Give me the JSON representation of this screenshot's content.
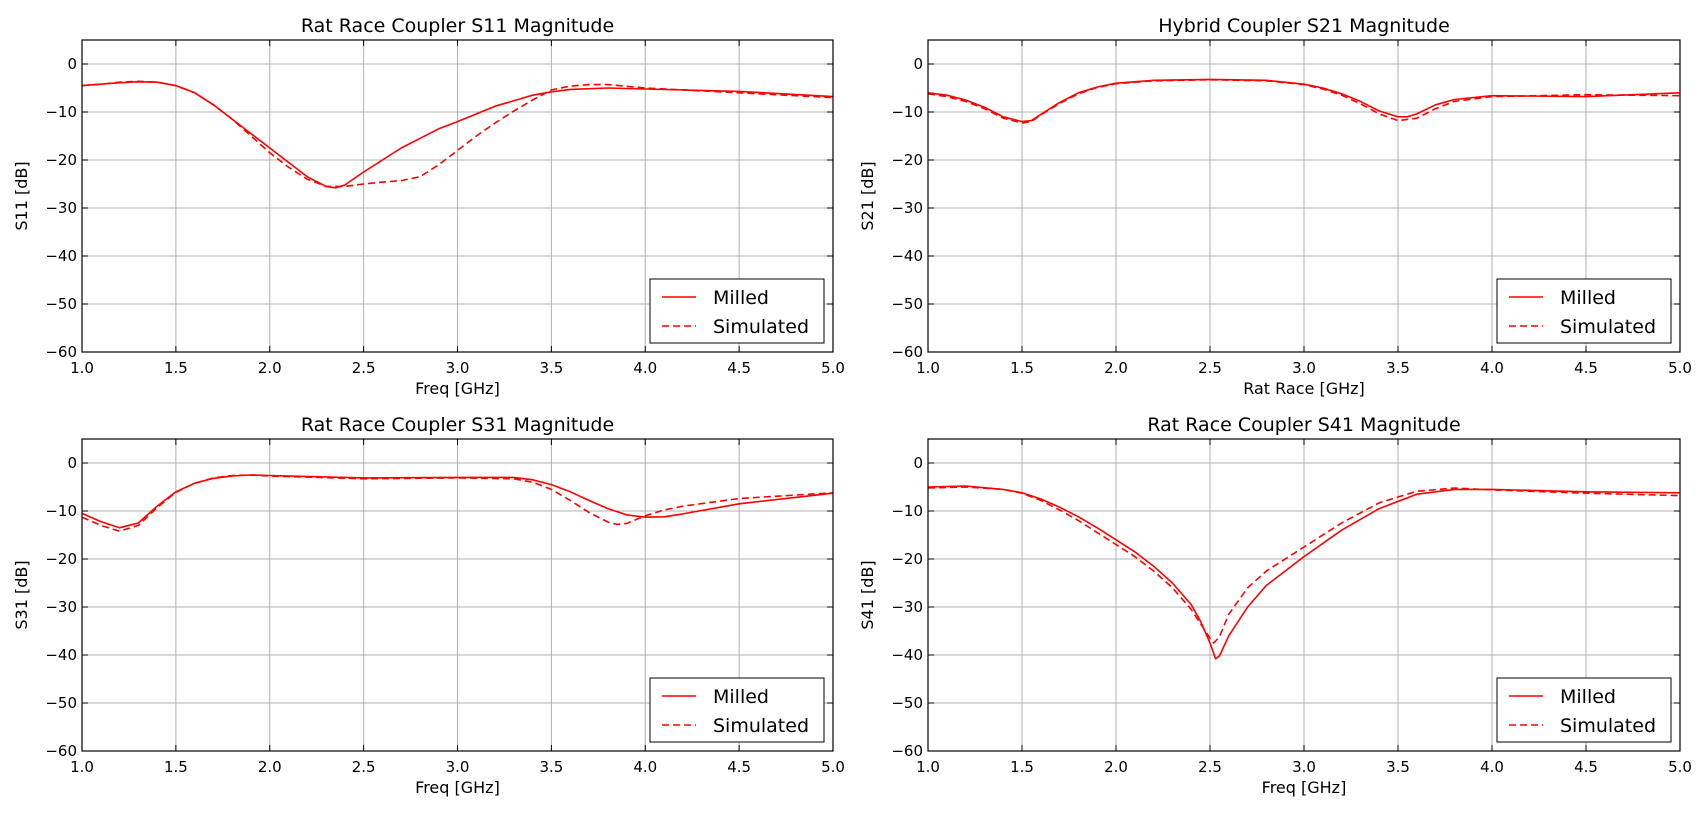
{
  "colors": {
    "series": "#ff0000",
    "grid": "#b0b0b0",
    "axes": "#000000"
  },
  "chart_data": [
    {
      "type": "line",
      "title": "Rat Race Coupler S11 Magnitude",
      "xlabel": "Freq [GHz]",
      "ylabel": "S11 [dB]",
      "xlim": [
        1.0,
        5.0
      ],
      "ylim": [
        -60,
        5
      ],
      "xticks": [
        "1.0",
        "1.5",
        "2.0",
        "2.5",
        "3.0",
        "3.5",
        "4.0",
        "4.5",
        "5.0"
      ],
      "yticks": [
        "0",
        "−10",
        "−20",
        "−30",
        "−40",
        "−50",
        "−60"
      ],
      "grid": true,
      "legend": "lower-right",
      "series": [
        {
          "name": "Milled",
          "style": "solid",
          "x": [
            1.0,
            1.1,
            1.2,
            1.3,
            1.4,
            1.5,
            1.6,
            1.7,
            1.8,
            1.9,
            2.0,
            2.1,
            2.2,
            2.3,
            2.35,
            2.4,
            2.5,
            2.6,
            2.7,
            2.8,
            2.9,
            3.0,
            3.2,
            3.4,
            3.5,
            3.6,
            3.8,
            4.0,
            4.5,
            5.0
          ],
          "y": [
            -4.5,
            -4.2,
            -3.9,
            -3.7,
            -3.8,
            -4.5,
            -6,
            -8.5,
            -11.5,
            -14.5,
            -17.5,
            -20.5,
            -23.5,
            -25.5,
            -25.8,
            -25.2,
            -22.5,
            -20,
            -17.5,
            -15.5,
            -13.5,
            -12,
            -8.8,
            -6.5,
            -5.8,
            -5.3,
            -5,
            -5.2,
            -5.7,
            -6.8
          ]
        },
        {
          "name": "Simulated",
          "style": "dashed",
          "x": [
            1.0,
            1.1,
            1.2,
            1.3,
            1.4,
            1.5,
            1.6,
            1.7,
            1.8,
            1.9,
            2.0,
            2.1,
            2.2,
            2.3,
            2.4,
            2.5,
            2.6,
            2.7,
            2.8,
            2.9,
            3.0,
            3.1,
            3.2,
            3.3,
            3.4,
            3.5,
            3.6,
            3.7,
            3.8,
            4.0,
            4.5,
            5.0
          ],
          "y": [
            -4.5,
            -4.2,
            -3.8,
            -3.6,
            -3.8,
            -4.5,
            -6,
            -8.5,
            -11.5,
            -15,
            -18.5,
            -21.5,
            -24,
            -25.5,
            -25.5,
            -25,
            -24.6,
            -24.3,
            -23.5,
            -21,
            -18,
            -15,
            -12.3,
            -9.8,
            -7.5,
            -5.4,
            -4.6,
            -4.3,
            -4.3,
            -5,
            -6,
            -7
          ]
        }
      ]
    },
    {
      "type": "line",
      "title": "Hybrid Coupler S21 Magnitude",
      "xlabel": "Rat Race [GHz]",
      "ylabel": "S21 [dB]",
      "xlim": [
        1.0,
        5.0
      ],
      "ylim": [
        -60,
        5
      ],
      "xticks": [
        "1.0",
        "1.5",
        "2.0",
        "2.5",
        "3.0",
        "3.5",
        "4.0",
        "4.5",
        "5.0"
      ],
      "yticks": [
        "0",
        "−10",
        "−20",
        "−30",
        "−40",
        "−50",
        "−60"
      ],
      "grid": true,
      "legend": "lower-right",
      "series": [
        {
          "name": "Milled",
          "style": "solid",
          "x": [
            1.0,
            1.1,
            1.2,
            1.3,
            1.4,
            1.5,
            1.55,
            1.6,
            1.7,
            1.8,
            1.9,
            2.0,
            2.2,
            2.5,
            2.8,
            3.0,
            3.1,
            3.2,
            3.3,
            3.4,
            3.5,
            3.55,
            3.6,
            3.7,
            3.8,
            4.0,
            4.5,
            5.0
          ],
          "y": [
            -6,
            -6.5,
            -7.5,
            -9,
            -11,
            -12,
            -11.8,
            -10.5,
            -8,
            -6,
            -4.8,
            -4,
            -3.4,
            -3.2,
            -3.4,
            -4.2,
            -5,
            -6.2,
            -7.8,
            -9.8,
            -11,
            -11,
            -10.4,
            -8.5,
            -7.4,
            -6.6,
            -6.8,
            -6
          ]
        },
        {
          "name": "Simulated",
          "style": "dashed",
          "x": [
            1.0,
            1.1,
            1.2,
            1.3,
            1.4,
            1.5,
            1.55,
            1.6,
            1.7,
            1.8,
            1.9,
            2.0,
            2.2,
            2.5,
            2.8,
            3.0,
            3.1,
            3.2,
            3.3,
            3.4,
            3.5,
            3.6,
            3.7,
            3.8,
            4.0,
            4.5,
            5.0
          ],
          "y": [
            -6.2,
            -6.8,
            -7.8,
            -9.3,
            -11.3,
            -12.3,
            -12,
            -10.6,
            -8.2,
            -6.2,
            -4.9,
            -4.1,
            -3.5,
            -3.3,
            -3.5,
            -4.3,
            -5.2,
            -6.5,
            -8.3,
            -10.4,
            -11.8,
            -11.3,
            -9.3,
            -7.8,
            -6.8,
            -6.4,
            -6.6
          ]
        }
      ]
    },
    {
      "type": "line",
      "title": "Rat Race Coupler S31 Magnitude",
      "xlabel": "Freq [GHz]",
      "ylabel": "S31 [dB]",
      "xlim": [
        1.0,
        5.0
      ],
      "ylim": [
        -60,
        5
      ],
      "xticks": [
        "1.0",
        "1.5",
        "2.0",
        "2.5",
        "3.0",
        "3.5",
        "4.0",
        "4.5",
        "5.0"
      ],
      "yticks": [
        "0",
        "−10",
        "−20",
        "−30",
        "−40",
        "−50",
        "−60"
      ],
      "grid": true,
      "legend": "lower-right",
      "series": [
        {
          "name": "Milled",
          "style": "solid",
          "x": [
            1.0,
            1.1,
            1.2,
            1.3,
            1.4,
            1.5,
            1.6,
            1.7,
            1.8,
            1.9,
            2.0,
            2.5,
            3.0,
            3.3,
            3.4,
            3.5,
            3.6,
            3.7,
            3.8,
            3.9,
            4.0,
            4.1,
            4.2,
            4.5,
            5.0
          ],
          "y": [
            -10.5,
            -12.2,
            -13.5,
            -12.5,
            -9,
            -6,
            -4.2,
            -3.2,
            -2.7,
            -2.5,
            -2.6,
            -3.1,
            -3,
            -3,
            -3.5,
            -4.5,
            -6,
            -7.8,
            -9.5,
            -10.8,
            -11.3,
            -11.2,
            -10.6,
            -8.5,
            -6.3
          ]
        },
        {
          "name": "Simulated",
          "style": "dashed",
          "x": [
            1.0,
            1.1,
            1.2,
            1.3,
            1.4,
            1.5,
            1.6,
            1.7,
            1.8,
            1.9,
            2.0,
            2.5,
            3.0,
            3.3,
            3.4,
            3.5,
            3.6,
            3.7,
            3.8,
            3.85,
            3.9,
            4.0,
            4.1,
            4.2,
            4.5,
            5.0
          ],
          "y": [
            -11.3,
            -13,
            -14.2,
            -13,
            -9.3,
            -6.1,
            -4.2,
            -3.1,
            -2.6,
            -2.5,
            -2.7,
            -3.3,
            -3.1,
            -3.3,
            -4,
            -5.5,
            -7.8,
            -10.3,
            -12.3,
            -12.8,
            -12.6,
            -11,
            -9.8,
            -9,
            -7.4,
            -6.2
          ]
        }
      ]
    },
    {
      "type": "line",
      "title": "Rat Race Coupler S41 Magnitude",
      "xlabel": "Freq [GHz]",
      "ylabel": "S41 [dB]",
      "xlim": [
        1.0,
        5.0
      ],
      "ylim": [
        -60,
        5
      ],
      "xticks": [
        "1.0",
        "1.5",
        "2.0",
        "2.5",
        "3.0",
        "3.5",
        "4.0",
        "4.5",
        "5.0"
      ],
      "yticks": [
        "0",
        "−10",
        "−20",
        "−30",
        "−40",
        "−50",
        "−60"
      ],
      "grid": true,
      "legend": "lower-right",
      "series": [
        {
          "name": "Milled",
          "style": "solid",
          "x": [
            1.0,
            1.2,
            1.4,
            1.5,
            1.6,
            1.7,
            1.8,
            1.9,
            2.0,
            2.1,
            2.2,
            2.3,
            2.4,
            2.45,
            2.5,
            2.53,
            2.55,
            2.6,
            2.7,
            2.8,
            3.0,
            3.2,
            3.4,
            3.6,
            3.8,
            4.0,
            4.5,
            5.0
          ],
          "y": [
            -5,
            -4.8,
            -5.5,
            -6.2,
            -7.5,
            -9.2,
            -11.2,
            -13.5,
            -16,
            -18.5,
            -21.5,
            -25,
            -29.5,
            -33,
            -37.5,
            -40.8,
            -40.2,
            -36,
            -30,
            -25.5,
            -19.5,
            -14,
            -9.5,
            -6.5,
            -5.5,
            -5.5,
            -6,
            -6.2
          ]
        },
        {
          "name": "Simulated",
          "style": "dashed",
          "x": [
            1.0,
            1.2,
            1.4,
            1.5,
            1.6,
            1.7,
            1.8,
            1.9,
            2.0,
            2.1,
            2.2,
            2.3,
            2.4,
            2.45,
            2.5,
            2.52,
            2.55,
            2.6,
            2.7,
            2.8,
            3.0,
            3.2,
            3.4,
            3.6,
            3.8,
            4.0,
            4.5,
            5.0
          ],
          "y": [
            -5.2,
            -5,
            -5.5,
            -6.3,
            -7.8,
            -9.8,
            -12,
            -14.5,
            -17,
            -19.5,
            -22.5,
            -26,
            -30.5,
            -33.5,
            -36.5,
            -37.5,
            -36.2,
            -31.5,
            -26,
            -22.5,
            -17.5,
            -12.5,
            -8.3,
            -5.9,
            -5.2,
            -5.6,
            -6.3,
            -6.8
          ]
        }
      ]
    }
  ]
}
